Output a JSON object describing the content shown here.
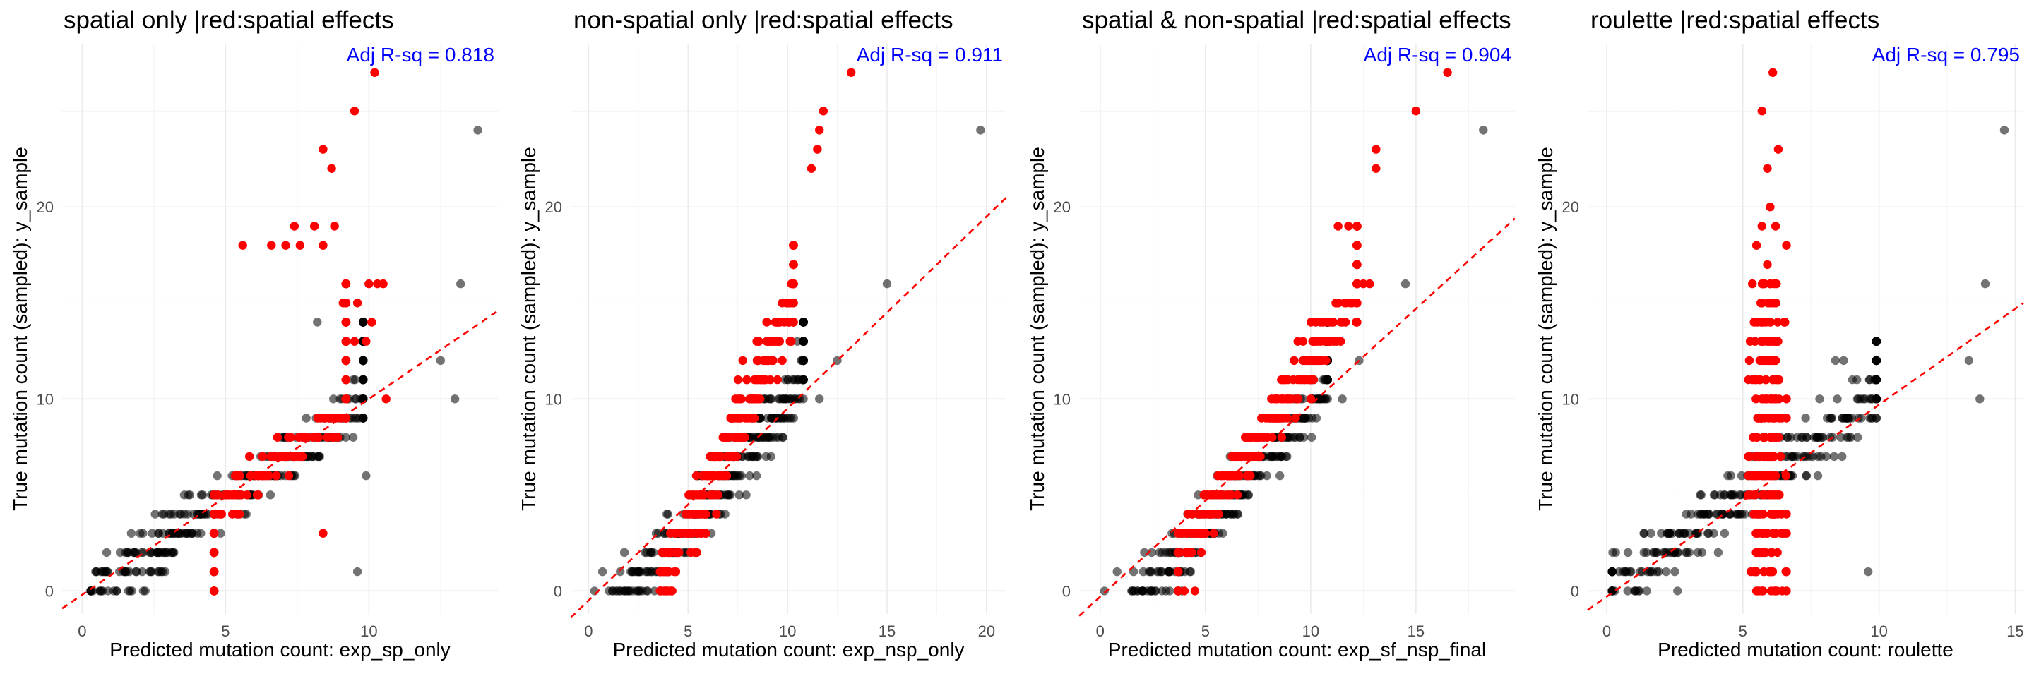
{
  "colors": {
    "black_points": "#000000",
    "red_points": "#ff0000",
    "r2_text": "#0000ff",
    "fit_line": "#ff0000"
  },
  "chart_data": [
    {
      "type": "scatter",
      "title": "spatial only |red:spatial effects",
      "xlabel": "Predicted mutation count: exp_sp_only",
      "ylabel": "True mutation count (sampled): y_sample",
      "annotation": "Adj R-sq = 0.818",
      "xlim": [
        -0.7,
        14.5
      ],
      "ylim": [
        -1.2,
        28.5
      ],
      "x_ticks": [
        "0",
        "5",
        "10"
      ],
      "y_ticks": [
        "0",
        "10",
        "20"
      ],
      "grid": true,
      "fit_line": {
        "slope": 1.02,
        "intercept": -0.2
      },
      "series": [
        {
          "color": "black",
          "cloud": {
            "x_min": 0.3,
            "x_max": 9.8,
            "y_max": 14,
            "slope": 1.05,
            "intercept": -0.5,
            "spread": 0.9,
            "n_per_row": 34
          },
          "points": [
            [
              0.3,
              0
            ],
            [
              0.5,
              1
            ],
            [
              0.9,
              0
            ],
            [
              1.3,
              1
            ],
            [
              1.8,
              2
            ],
            [
              2.2,
              0
            ],
            [
              2.9,
              1
            ],
            [
              3.2,
              2
            ],
            [
              13.8,
              24
            ],
            [
              13.2,
              16
            ],
            [
              12.5,
              12
            ],
            [
              13,
              10
            ],
            [
              9.6,
              1
            ],
            [
              8.2,
              14
            ],
            [
              9.9,
              6
            ]
          ]
        },
        {
          "color": "red",
          "cloud": {
            "x_min": 4.6,
            "x_max": 9.2,
            "y_max": 16,
            "slope": 1.05,
            "intercept": -0.5,
            "spread": 0.7,
            "n_per_row": 20
          },
          "points": [
            [
              10.2,
              27
            ],
            [
              9.5,
              25
            ],
            [
              8.4,
              23
            ],
            [
              8.7,
              22
            ],
            [
              7.4,
              19
            ],
            [
              8.1,
              19
            ],
            [
              8.8,
              19
            ],
            [
              5.6,
              18
            ],
            [
              6.6,
              18
            ],
            [
              7.1,
              18
            ],
            [
              7.6,
              18
            ],
            [
              8.4,
              18
            ],
            [
              10.0,
              16
            ],
            [
              10.3,
              16
            ],
            [
              10.5,
              16
            ],
            [
              9.1,
              15
            ],
            [
              9.6,
              15
            ],
            [
              10.1,
              14
            ],
            [
              9.5,
              13
            ],
            [
              9.9,
              13
            ],
            [
              10.6,
              10
            ],
            [
              8.4,
              3
            ]
          ]
        }
      ]
    },
    {
      "type": "scatter",
      "title": "non-spatial only |red:spatial effects",
      "xlabel": "Predicted mutation count: exp_nsp_only",
      "ylabel": "True mutation count (sampled): y_sample",
      "annotation": "Adj R-sq = 0.911",
      "xlim": [
        -0.9,
        21.0
      ],
      "ylim": [
        -1.2,
        28.5
      ],
      "x_ticks": [
        "0",
        "5",
        "10",
        "15",
        "20"
      ],
      "y_ticks": [
        "0",
        "10",
        "20"
      ],
      "grid": true,
      "fit_line": {
        "slope": 1.0,
        "intercept": -0.5
      },
      "series": [
        {
          "color": "black",
          "cloud": {
            "x_min": 0.2,
            "x_max": 10.8,
            "y_max": 14,
            "slope": 1.3,
            "intercept": -3.0,
            "spread": 0.8,
            "n_per_row": 30
          },
          "points": [
            [
              0.3,
              0
            ],
            [
              0.7,
              1
            ],
            [
              1.2,
              0
            ],
            [
              1.8,
              2
            ],
            [
              2.4,
              1
            ],
            [
              2.9,
              0
            ],
            [
              19.7,
              24
            ],
            [
              15.0,
              16
            ],
            [
              12.5,
              12
            ],
            [
              11.6,
              10
            ],
            [
              10.5,
              13
            ]
          ]
        },
        {
          "color": "red",
          "cloud": {
            "x_min": 3.6,
            "x_max": 10.3,
            "y_max": 18,
            "slope": 2.3,
            "intercept": -8.6,
            "spread": 0.55,
            "n_per_row": 20
          },
          "points": [
            [
              13.2,
              27
            ],
            [
              11.8,
              25
            ],
            [
              11.6,
              24
            ],
            [
              11.5,
              23
            ],
            [
              11.2,
              22
            ],
            [
              3.9,
              0
            ],
            [
              4.2,
              0
            ]
          ]
        }
      ]
    },
    {
      "type": "scatter",
      "title": "spatial & non-spatial |red:spatial effects",
      "xlabel": "Predicted mutation count: exp_sf_nsp_final",
      "ylabel": "True mutation count (sampled): y_sample",
      "annotation": "Adj R-sq = 0.904",
      "xlim": [
        -1.0,
        19.7
      ],
      "ylim": [
        -1.2,
        28.5
      ],
      "x_ticks": [
        "0",
        "5",
        "10",
        "15"
      ],
      "y_ticks": [
        "0",
        "10",
        "20"
      ],
      "grid": true,
      "fit_line": {
        "slope": 1.0,
        "intercept": -0.3
      },
      "series": [
        {
          "color": "black",
          "cloud": {
            "x_min": 0.2,
            "x_max": 10.8,
            "y_max": 14,
            "slope": 1.25,
            "intercept": -2.7,
            "spread": 0.8,
            "n_per_row": 30
          },
          "points": [
            [
              0.2,
              0
            ],
            [
              0.8,
              1
            ],
            [
              1.5,
              0
            ],
            [
              2.1,
              2
            ],
            [
              2.8,
              1
            ],
            [
              3.3,
              0
            ],
            [
              18.2,
              24
            ],
            [
              14.5,
              16
            ],
            [
              12.3,
              12
            ],
            [
              11.5,
              10
            ]
          ]
        },
        {
          "color": "red",
          "cloud": {
            "x_min": 3.7,
            "x_max": 12.2,
            "y_max": 19,
            "slope": 1.6,
            "intercept": -4.0,
            "spread": 0.6,
            "n_per_row": 20
          },
          "points": [
            [
              16.5,
              27
            ],
            [
              15.0,
              25
            ],
            [
              13.1,
              23
            ],
            [
              13.1,
              22
            ],
            [
              11.3,
              19
            ],
            [
              11.8,
              19
            ],
            [
              12.5,
              16
            ],
            [
              12.8,
              16
            ],
            [
              10.0,
              10
            ],
            [
              4.0,
              0
            ],
            [
              4.5,
              0
            ]
          ]
        }
      ]
    },
    {
      "type": "scatter",
      "title": "roulette |red:spatial effects",
      "xlabel": "Predicted mutation count: roulette",
      "ylabel": "True mutation count (sampled): y_sample",
      "annotation": "Adj R-sq = 0.795",
      "xlim": [
        -0.7,
        15.3
      ],
      "ylim": [
        -1.2,
        28.5
      ],
      "x_ticks": [
        "0",
        "5",
        "10",
        "15"
      ],
      "y_ticks": [
        "0",
        "10",
        "20"
      ],
      "grid": true,
      "fit_line": {
        "slope": 1.0,
        "intercept": -0.3
      },
      "series": [
        {
          "color": "black",
          "cloud": {
            "x_min": 0.2,
            "x_max": 9.9,
            "y_max": 13,
            "slope": 1.0,
            "intercept": 0,
            "spread": 1.1,
            "n_per_row": 30
          },
          "points": [
            [
              0.3,
              0
            ],
            [
              0.7,
              1
            ],
            [
              1.2,
              0
            ],
            [
              1.6,
              1
            ],
            [
              2.2,
              2
            ],
            [
              2.6,
              0
            ],
            [
              14.6,
              24
            ],
            [
              13.9,
              16
            ],
            [
              13.3,
              12
            ],
            [
              13.7,
              10
            ],
            [
              9.6,
              1
            ],
            [
              8.4,
              12
            ],
            [
              8.7,
              12
            ]
          ]
        },
        {
          "color": "red",
          "cloud": {
            "x_min": 5.2,
            "x_max": 6.6,
            "y_max": 16,
            "slope": 0,
            "intercept": 5.9,
            "spread": 0.45,
            "n_per_row": 18
          },
          "points": [
            [
              6.1,
              27
            ],
            [
              5.7,
              25
            ],
            [
              6.3,
              23
            ],
            [
              5.9,
              22
            ],
            [
              6.0,
              20
            ],
            [
              5.7,
              19
            ],
            [
              6.2,
              19
            ],
            [
              5.5,
              18
            ],
            [
              6.6,
              18
            ],
            [
              5.9,
              17
            ]
          ]
        }
      ]
    }
  ]
}
